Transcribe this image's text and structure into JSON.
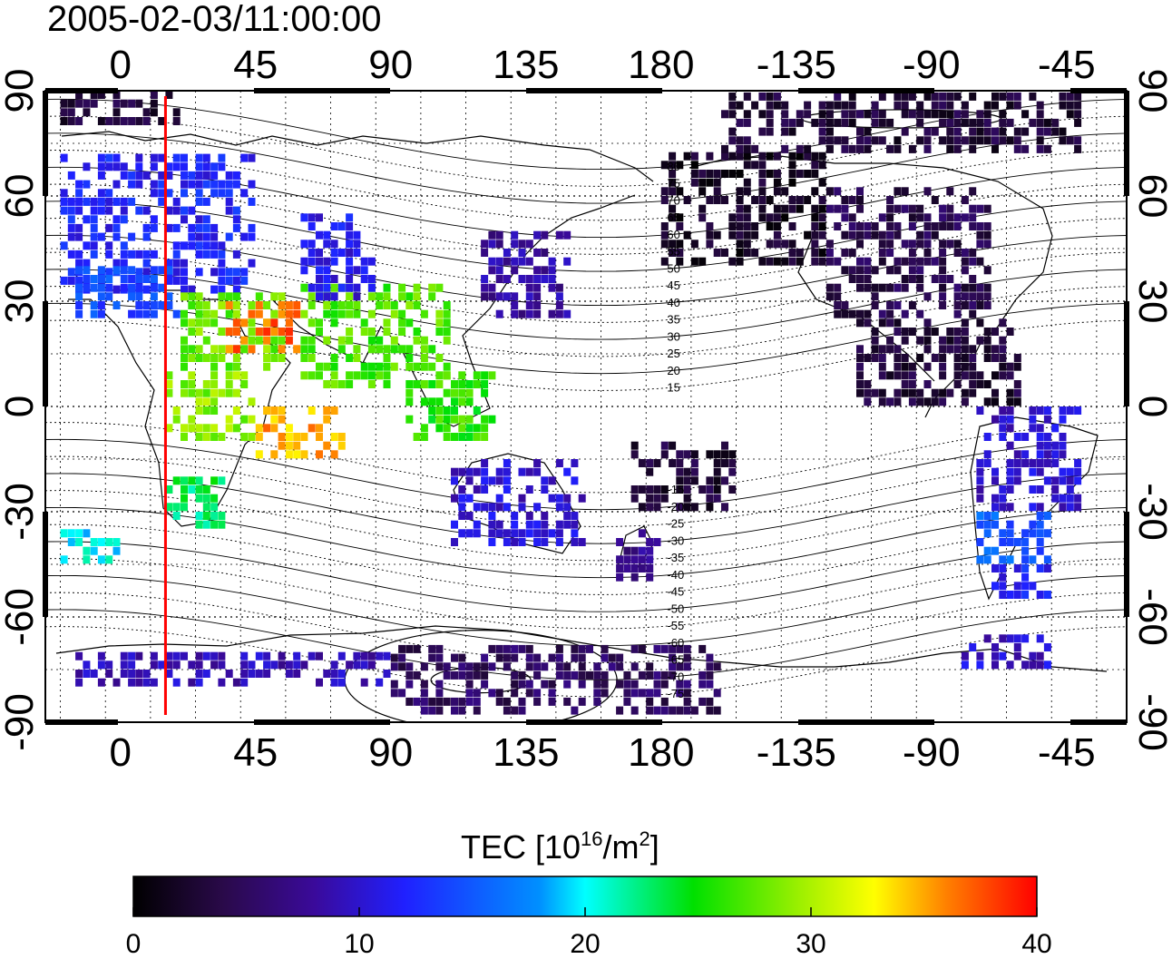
{
  "title": "2005-02-03/11:00:00",
  "colorbar": {
    "label_main": "TEC  [10",
    "label_exp": "16",
    "label_unit": "/m",
    "label_exp2": "2",
    "label_close": "]",
    "range": [
      0,
      40
    ],
    "ticks": [
      "0",
      "10",
      "20",
      "30",
      "40"
    ]
  },
  "axes": {
    "lon_ticks": [
      "0",
      "45",
      "90",
      "135",
      "180",
      "-135",
      "-90",
      "-45"
    ],
    "lat_ticks": [
      "90",
      "60",
      "30",
      "0",
      "-30",
      "-60",
      "-90"
    ]
  },
  "mlat_labels": [
    "80",
    "75",
    "70",
    "65",
    "60",
    "55",
    "50",
    "45",
    "40",
    "35",
    "30",
    "25",
    "20",
    "15",
    "-15",
    "-20",
    "-25",
    "-30",
    "-35",
    "-40",
    "-45",
    "-50",
    "-55",
    "-60",
    "-65",
    "-70",
    "-75"
  ],
  "marker_line": {
    "lon": 15,
    "color": "#ff0000"
  },
  "chart_data": {
    "type": "heatmap",
    "xlabel": "",
    "ylabel": "",
    "xlim": [
      -25,
      335
    ],
    "ylim": [
      -90,
      90
    ],
    "value_range": [
      0,
      40
    ],
    "regions": [
      {
        "lon": [
          -20,
          45
        ],
        "lat": [
          32,
          72
        ],
        "tec": 12
      },
      {
        "lon": [
          -15,
          20
        ],
        "lat": [
          25,
          40
        ],
        "tec": 14
      },
      {
        "lon": [
          20,
          55
        ],
        "lat": [
          10,
          32
        ],
        "tec": 28
      },
      {
        "lon": [
          35,
          60
        ],
        "lat": [
          15,
          30
        ],
        "tec": 37
      },
      {
        "lon": [
          60,
          110
        ],
        "lat": [
          5,
          35
        ],
        "tec": 27
      },
      {
        "lon": [
          95,
          125
        ],
        "lat": [
          -10,
          10
        ],
        "tec": 26
      },
      {
        "lon": [
          15,
          45
        ],
        "lat": [
          -10,
          10
        ],
        "tec": 29
      },
      {
        "lon": [
          45,
          75
        ],
        "lat": [
          -15,
          0
        ],
        "tec": 35
      },
      {
        "lon": [
          15,
          35
        ],
        "lat": [
          -35,
          -20
        ],
        "tec": 23
      },
      {
        "lon": [
          -20,
          0
        ],
        "lat": [
          -45,
          -35
        ],
        "tec": 20
      },
      {
        "lon": [
          60,
          85
        ],
        "lat": [
          30,
          55
        ],
        "tec": 11
      },
      {
        "lon": [
          120,
          150
        ],
        "lat": [
          25,
          50
        ],
        "tec": 8
      },
      {
        "lon": [
          110,
          155
        ],
        "lat": [
          -40,
          -15
        ],
        "tec": 10
      },
      {
        "lon": [
          165,
          180
        ],
        "lat": [
          -50,
          -35
        ],
        "tec": 7
      },
      {
        "lon": [
          180,
          235
        ],
        "lat": [
          40,
          72
        ],
        "tec": 2
      },
      {
        "lon": [
          235,
          290
        ],
        "lat": [
          25,
          62
        ],
        "tec": 4
      },
      {
        "lon": [
          245,
          300
        ],
        "lat": [
          0,
          25
        ],
        "tec": 3
      },
      {
        "lon": [
          285,
          320
        ],
        "lat": [
          -30,
          0
        ],
        "tec": 10
      },
      {
        "lon": [
          285,
          310
        ],
        "lat": [
          -45,
          -30
        ],
        "tec": 15
      },
      {
        "lon": [
          290,
          310
        ],
        "lat": [
          -55,
          -45
        ],
        "tec": 12
      },
      {
        "lon": [
          -15,
          90
        ],
        "lat": [
          -80,
          -70
        ],
        "tec": 9
      },
      {
        "lon": [
          90,
          200
        ],
        "lat": [
          -88,
          -70
        ],
        "tec": 5
      },
      {
        "lon": [
          200,
          320
        ],
        "lat": [
          72,
          88
        ],
        "tec": 3
      },
      {
        "lon": [
          -20,
          20
        ],
        "lat": [
          80,
          88
        ],
        "tec": 3
      },
      {
        "lon": [
          170,
          205
        ],
        "lat": [
          -30,
          -10
        ],
        "tec": 3
      },
      {
        "lon": [
          280,
          310
        ],
        "lat": [
          -75,
          -65
        ],
        "tec": 10
      }
    ]
  }
}
